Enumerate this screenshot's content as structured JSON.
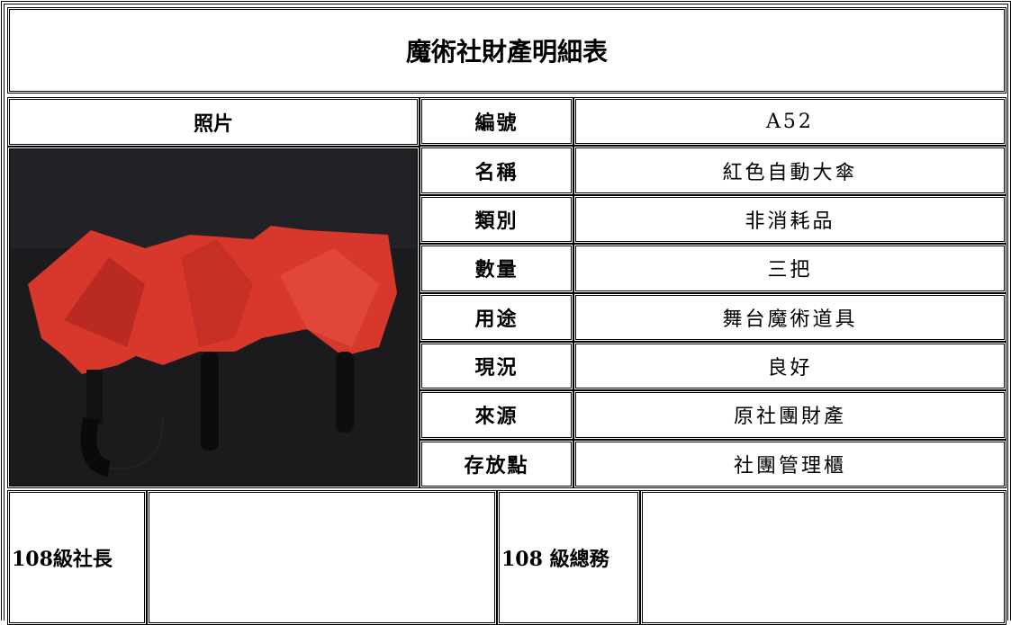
{
  "title": "魔術社財產明細表",
  "photo_header": "照片",
  "fields": [
    {
      "label": "編號",
      "value": "A52"
    },
    {
      "label": "名稱",
      "value": "紅色自動大傘"
    },
    {
      "label": "類別",
      "value": "非消耗品"
    },
    {
      "label": "數量",
      "value": "三把"
    },
    {
      "label": "用途",
      "value": "舞台魔術道具"
    },
    {
      "label": "現況",
      "value": "良好"
    },
    {
      "label": "來源",
      "value": "原社團財產"
    },
    {
      "label": "存放點",
      "value": "社團管理櫃"
    }
  ],
  "signatures": [
    {
      "label": "108級社長"
    },
    {
      "label": "108 級總務"
    }
  ]
}
